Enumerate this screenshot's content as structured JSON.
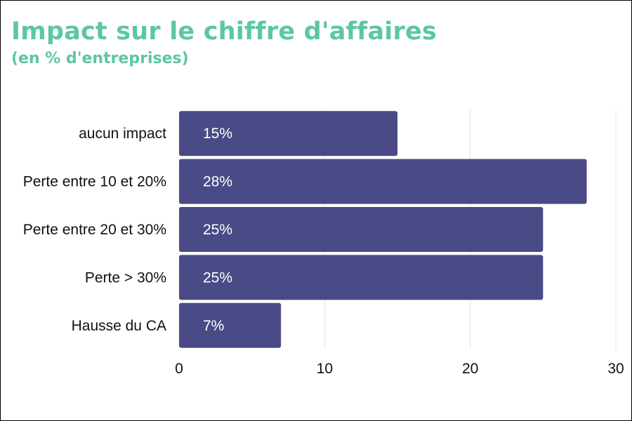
{
  "title": "Impact sur le chiffre d'affaires",
  "subtitle": "(en % d'entreprises)",
  "colors": {
    "title": "#5dc6a3",
    "bar": "#4a4a87",
    "grid": "#e4e4e4",
    "bar_label": "#ffffff",
    "text": "#111111"
  },
  "chart_data": {
    "type": "bar",
    "orientation": "horizontal",
    "categories": [
      "aucun impact",
      "Perte entre 10 et 20%",
      "Perte entre 20 et 30%",
      "Perte > 30%",
      "Hausse du CA"
    ],
    "values": [
      15,
      28,
      25,
      25,
      7
    ],
    "data_labels": [
      "15%",
      "28%",
      "25%",
      "25%",
      "7%"
    ],
    "xlim": [
      0,
      30
    ],
    "xticks": [
      0,
      10,
      20,
      30
    ],
    "xlabel": "",
    "ylabel": "",
    "grid": true,
    "legend": "none"
  }
}
